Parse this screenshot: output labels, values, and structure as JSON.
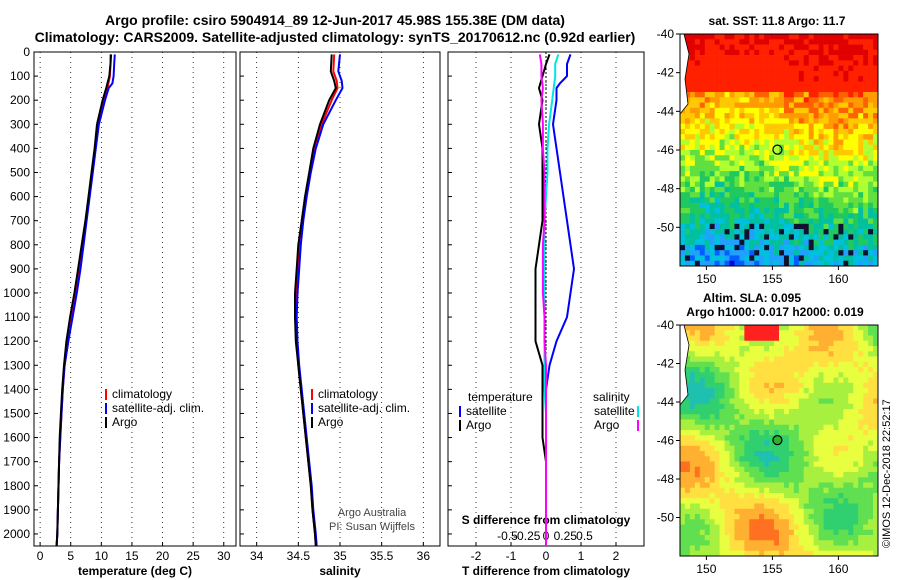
{
  "title": {
    "line1": "Argo profile: csiro 5904914_89 12-Jun-2017 45.98S 155.38E (DM data)",
    "line2": "Climatology: CARS2009. Satellite-adjusted climatology: synTS_20170612.nc (0.92d earlier)"
  },
  "colors": {
    "climatology": "#ff0000",
    "satellite": "#0000ff",
    "argo": "#000000",
    "sat_salinity": "#00e5e5",
    "argo_salinity": "#ff00ff"
  },
  "credit": {
    "line1": "Argo Australia",
    "line2": "PI: Susan Wijffels"
  },
  "watermark": "©IMOS 12-Dec-2018 22:52:17",
  "chart_data": [
    {
      "type": "line",
      "id": "temperature",
      "xlabel": "temperature (deg C)",
      "xlim": [
        -1,
        32
      ],
      "ylim": [
        0,
        2050
      ],
      "xticks": [
        0,
        5,
        10,
        15,
        20,
        25,
        30
      ],
      "yticks": [
        0,
        100,
        200,
        300,
        400,
        500,
        600,
        700,
        800,
        900,
        1000,
        1100,
        1200,
        1300,
        1400,
        1500,
        1600,
        1700,
        1800,
        1900,
        2000
      ],
      "legend": {
        "location": "bottom-right",
        "entries": [
          "climatology",
          "satellite-adj. clim.",
          "Argo"
        ]
      },
      "series": [
        {
          "name": "climatology",
          "depth": [
            10,
            50,
            100,
            150,
            200,
            300,
            400,
            500,
            600,
            700,
            800,
            900,
            1000,
            1100,
            1200,
            1300,
            1400,
            1500,
            1600,
            1700,
            1800,
            1900,
            2000,
            2050
          ],
          "values": [
            11.5,
            11.5,
            11.4,
            11.0,
            10.3,
            9.5,
            9.0,
            8.5,
            8.0,
            7.5,
            7.0,
            6.5,
            5.9,
            5.2,
            4.6,
            4.0,
            3.7,
            3.5,
            3.3,
            3.1,
            3.0,
            2.9,
            2.8,
            2.7
          ]
        },
        {
          "name": "satellite-adj. clim.",
          "depth": [
            10,
            50,
            100,
            130,
            150,
            200,
            300,
            400,
            500,
            600,
            700,
            800,
            900,
            1000,
            1100,
            1200,
            1300,
            1400,
            1500,
            1600,
            1700,
            1800,
            1900,
            2000,
            2050
          ],
          "values": [
            12.2,
            12.1,
            12.0,
            11.8,
            11.2,
            10.6,
            9.6,
            9.1,
            8.6,
            8.1,
            7.6,
            7.1,
            6.6,
            6.0,
            5.3,
            4.6,
            4.0,
            3.7,
            3.5,
            3.3,
            3.1,
            3.0,
            2.9,
            2.8,
            2.7
          ]
        },
        {
          "name": "Argo",
          "depth": [
            10,
            50,
            100,
            150,
            200,
            300,
            400,
            500,
            600,
            700,
            800,
            900,
            1000,
            1100,
            1200,
            1300,
            1400,
            1500,
            1600,
            1700,
            1800,
            1900,
            2000,
            2050
          ],
          "values": [
            11.6,
            11.5,
            11.3,
            10.8,
            10.2,
            9.3,
            8.9,
            8.4,
            7.9,
            7.4,
            6.8,
            6.2,
            5.6,
            4.9,
            4.3,
            3.9,
            3.6,
            3.4,
            3.2,
            3.1,
            3.0,
            2.9,
            2.8,
            2.7
          ]
        }
      ]
    },
    {
      "type": "line",
      "id": "salinity",
      "xlabel": "salinity",
      "xlim": [
        33.8,
        36.2
      ],
      "ylim": [
        0,
        2050
      ],
      "xticks": [
        34,
        34.5,
        35,
        35.5,
        36
      ],
      "legend": {
        "location": "bottom-right",
        "entries": [
          "climatology",
          "satellite-adj. clim.",
          "Argo"
        ]
      },
      "series": [
        {
          "name": "climatology",
          "depth": [
            10,
            80,
            120,
            150,
            200,
            300,
            400,
            500,
            600,
            700,
            800,
            900,
            1000,
            1100,
            1200,
            1300,
            1400,
            1500,
            1600,
            1700,
            1800,
            1900,
            2000,
            2050
          ],
          "values": [
            34.93,
            34.92,
            34.96,
            34.97,
            34.9,
            34.78,
            34.7,
            34.64,
            34.59,
            34.55,
            34.52,
            34.5,
            34.48,
            34.47,
            34.48,
            34.5,
            34.53,
            34.56,
            34.59,
            34.62,
            34.65,
            34.67,
            34.7,
            34.71
          ]
        },
        {
          "name": "satellite-adj. clim.",
          "depth": [
            10,
            80,
            120,
            150,
            200,
            300,
            400,
            500,
            600,
            700,
            800,
            900,
            1000,
            1100,
            1200,
            1300,
            1400,
            1500,
            1600,
            1700,
            1800,
            1900,
            2000,
            2050
          ],
          "values": [
            35.0,
            34.98,
            35.02,
            35.03,
            34.95,
            34.8,
            34.71,
            34.65,
            34.6,
            34.56,
            34.53,
            34.51,
            34.49,
            34.48,
            34.49,
            34.51,
            34.54,
            34.57,
            34.6,
            34.63,
            34.66,
            34.68,
            34.71,
            34.72
          ]
        },
        {
          "name": "Argo",
          "depth": [
            10,
            80,
            120,
            150,
            200,
            300,
            400,
            500,
            600,
            700,
            800,
            900,
            1000,
            1100,
            1200,
            1300,
            1400,
            1500,
            1600,
            1700,
            1800,
            1900,
            2000,
            2050
          ],
          "values": [
            34.9,
            34.89,
            34.93,
            34.95,
            34.87,
            34.76,
            34.68,
            34.63,
            34.58,
            34.54,
            34.5,
            34.48,
            34.46,
            34.46,
            34.47,
            34.5,
            34.53,
            34.56,
            34.59,
            34.62,
            34.65,
            34.67,
            34.7,
            34.71
          ]
        }
      ]
    },
    {
      "type": "line",
      "id": "difference",
      "xlabel": "T difference from climatology",
      "xlabel_top": "S difference from climatology",
      "xlim": [
        -2.8,
        2.8
      ],
      "ylim": [
        0,
        2050
      ],
      "xticks": [
        -2,
        -1,
        0,
        1,
        2
      ],
      "xticklabels": [
        "-2",
        "-1",
        "0",
        "1",
        "2"
      ],
      "s_xticks": [
        "-0.5",
        "-0.25",
        "0",
        "0.25",
        "0.5"
      ],
      "legend": {
        "location": "bottom",
        "columns": [
          {
            "heading": "temperature",
            "entries": [
              "satellite",
              "Argo"
            ]
          },
          {
            "heading": "salinity",
            "entries": [
              "satellite",
              "Argo"
            ]
          }
        ]
      },
      "series": [
        {
          "name": "T satellite",
          "depth": [
            10,
            50,
            100,
            130,
            150,
            200,
            300,
            400,
            500,
            600,
            700,
            800,
            900,
            1000,
            1100,
            1200,
            1300,
            1400,
            1500,
            1600,
            1700,
            1800,
            1900,
            2000,
            2050
          ],
          "values": [
            0.7,
            0.6,
            0.6,
            0.4,
            0.3,
            0.3,
            0.2,
            0.3,
            0.4,
            0.5,
            0.6,
            0.7,
            0.8,
            0.7,
            0.6,
            0.3,
            0.1,
            0.0,
            0.0,
            0.0,
            0.0,
            0.0,
            0.0,
            0.0,
            0.0
          ]
        },
        {
          "name": "T Argo",
          "depth": [
            10,
            50,
            100,
            150,
            200,
            300,
            400,
            500,
            600,
            700,
            800,
            900,
            1000,
            1100,
            1200,
            1300,
            1400,
            1500,
            1600,
            1700,
            1800,
            1900,
            2000,
            2050
          ],
          "values": [
            0.1,
            0.0,
            -0.1,
            -0.2,
            -0.1,
            -0.2,
            -0.1,
            -0.1,
            -0.1,
            -0.1,
            -0.2,
            -0.3,
            -0.3,
            -0.3,
            -0.3,
            -0.1,
            -0.1,
            -0.1,
            -0.1,
            0.0,
            0.0,
            0.0,
            0.0,
            0.0
          ]
        },
        {
          "name": "S satellite",
          "depth": [
            10,
            50,
            100,
            150,
            200,
            300,
            400,
            500,
            600,
            700,
            800,
            900,
            1000,
            1100,
            1200,
            1300,
            1400,
            1500,
            1600,
            1700,
            1800,
            1900,
            2000,
            2050
          ],
          "values": [
            0.08,
            0.06,
            0.06,
            0.05,
            0.04,
            0.02,
            0.01,
            0.01,
            0.0,
            -0.01,
            -0.01,
            -0.01,
            -0.01,
            -0.01,
            -0.01,
            -0.01,
            -0.01,
            0.0,
            0.0,
            0.0,
            0.0,
            0.0,
            0.0,
            0.0
          ]
        },
        {
          "name": "S Argo",
          "depth": [
            10,
            50,
            100,
            150,
            200,
            300,
            400,
            500,
            600,
            700,
            800,
            900,
            1000,
            1100,
            1200,
            1300,
            1400,
            1500,
            1600,
            1700,
            1800,
            1900,
            2000,
            2050
          ],
          "values": [
            -0.04,
            -0.03,
            -0.03,
            -0.02,
            -0.03,
            -0.02,
            -0.02,
            -0.01,
            -0.01,
            -0.01,
            -0.02,
            -0.02,
            -0.02,
            -0.01,
            -0.01,
            0.0,
            0.0,
            0.0,
            0.0,
            0.0,
            0.0,
            0.0,
            0.0,
            0.0
          ]
        }
      ]
    },
    {
      "type": "heatmap",
      "id": "sst_map",
      "title": "sat. SST: 11.8 Argo: 11.7",
      "xlim": [
        148,
        163
      ],
      "ylim": [
        -52,
        -40
      ],
      "xticks": [
        150,
        155,
        160
      ],
      "yticks": [
        -40,
        -42,
        -44,
        -46,
        -48,
        -50
      ],
      "marker": {
        "lon": 155.38,
        "lat": -45.98
      }
    },
    {
      "type": "heatmap",
      "id": "sla_map",
      "title": "Altim. SLA: 0.095",
      "subtitle": "Argo h1000: 0.017 h2000: 0.019",
      "xlim": [
        148,
        163
      ],
      "ylim": [
        -52,
        -40
      ],
      "xticks": [
        150,
        155,
        160
      ],
      "yticks": [
        -40,
        -42,
        -44,
        -46,
        -48,
        -50
      ],
      "marker": {
        "lon": 155.38,
        "lat": -45.98
      }
    }
  ]
}
